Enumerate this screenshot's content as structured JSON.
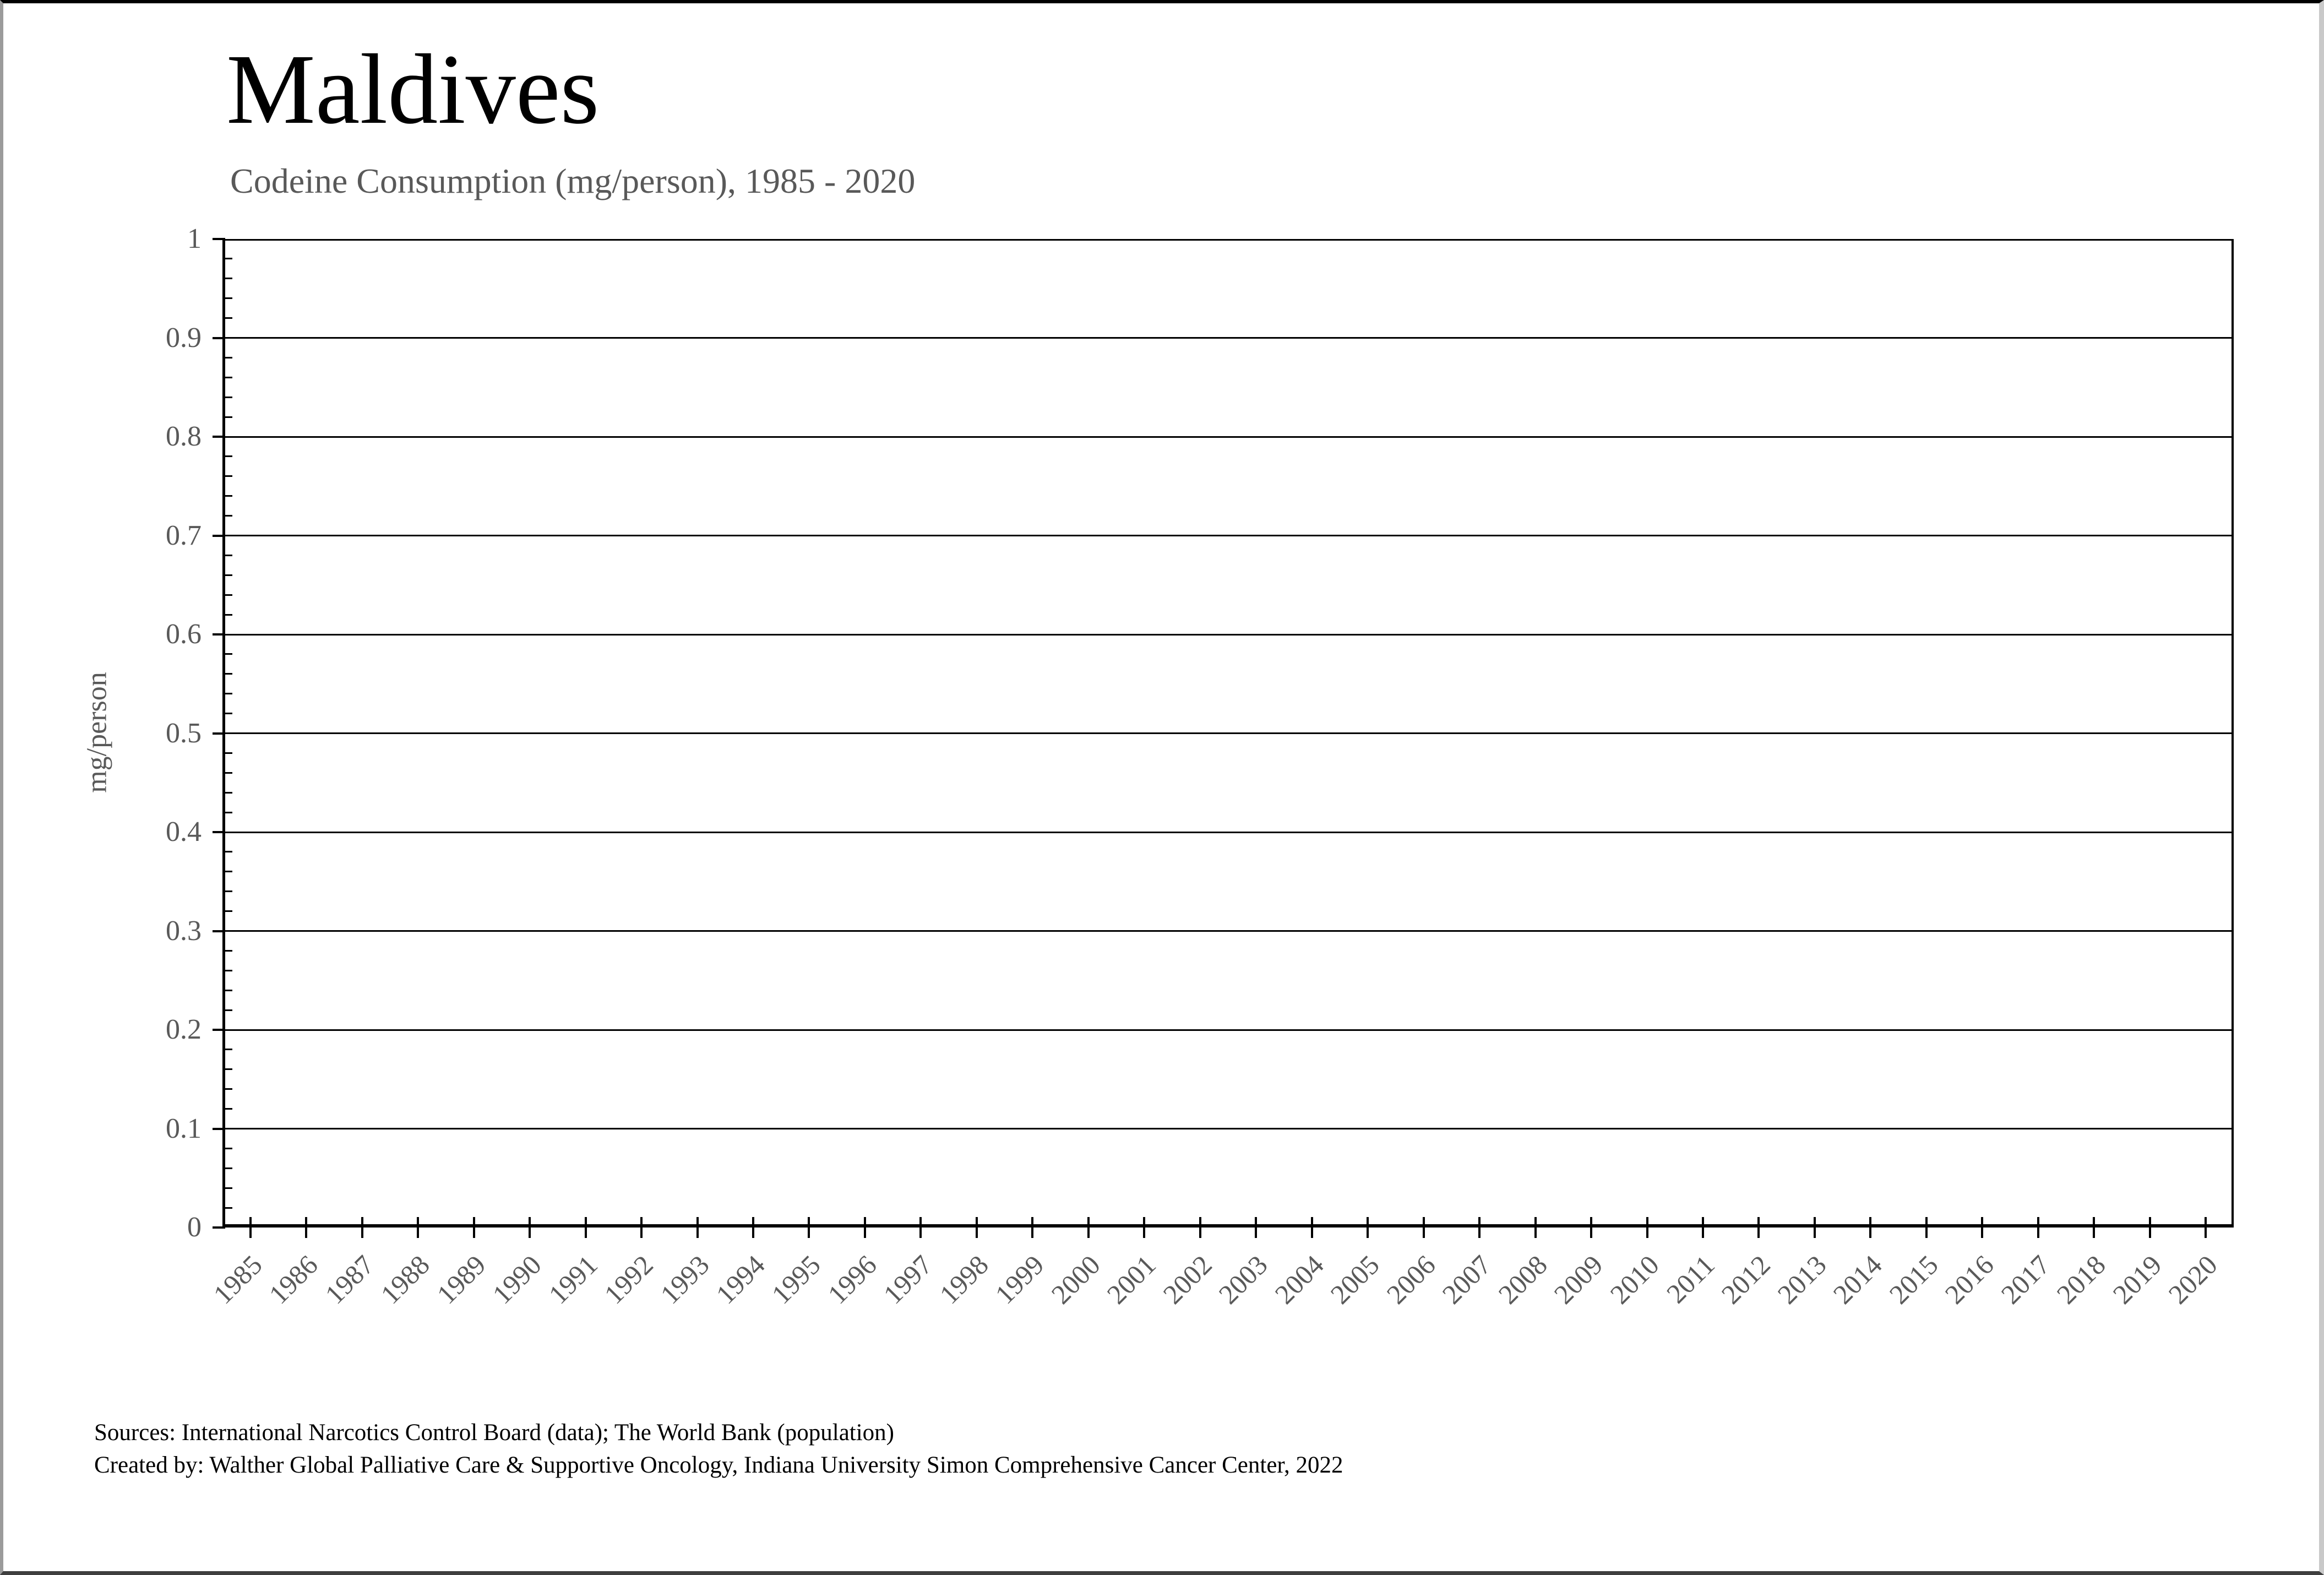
{
  "page": {
    "title": "Maldives",
    "subtitle": "Codeine Consumption (mg/person), 1985 - 2020",
    "source_line1": "Sources: International Narcotics Control Board (data); The World Bank (population)",
    "source_line2": "Created by: Walther Global Palliative Care & Supportive Oncology, Indiana University Simon Comprehensive Cancer Center, 2022"
  },
  "colors": {
    "background": "#ffffff",
    "text_primary": "#000000",
    "text_secondary": "#595959",
    "axis_line": "#000000",
    "gridline": "#000000"
  },
  "chart_data": {
    "type": "line",
    "title": "Maldives",
    "subtitle": "Codeine Consumption (mg/person), 1985 - 2020",
    "xlabel": "",
    "ylabel": "mg/person",
    "ylim": [
      0,
      1
    ],
    "ytick_values": [
      1,
      0.9,
      0.8,
      0.7,
      0.6,
      0.5,
      0.4,
      0.3,
      0.2,
      0.1,
      0
    ],
    "ytick_labels": [
      "1",
      "0.9",
      "0.8",
      "0.7",
      "0.6",
      "0.5",
      "0.4",
      "0.3",
      "0.2",
      "0.1",
      "0"
    ],
    "y_minor_tick_step": 0.02,
    "categories": [
      "1985",
      "1986",
      "1987",
      "1988",
      "1989",
      "1990",
      "1991",
      "1992",
      "1993",
      "1994",
      "1995",
      "1996",
      "1997",
      "1998",
      "1999",
      "2000",
      "2001",
      "2002",
      "2003",
      "2004",
      "2005",
      "2006",
      "2007",
      "2008",
      "2009",
      "2010",
      "2011",
      "2012",
      "2013",
      "2014",
      "2015",
      "2016",
      "2017",
      "2018",
      "2019",
      "2020"
    ],
    "series": [],
    "grid": "horizontal-major",
    "legend": "none"
  }
}
